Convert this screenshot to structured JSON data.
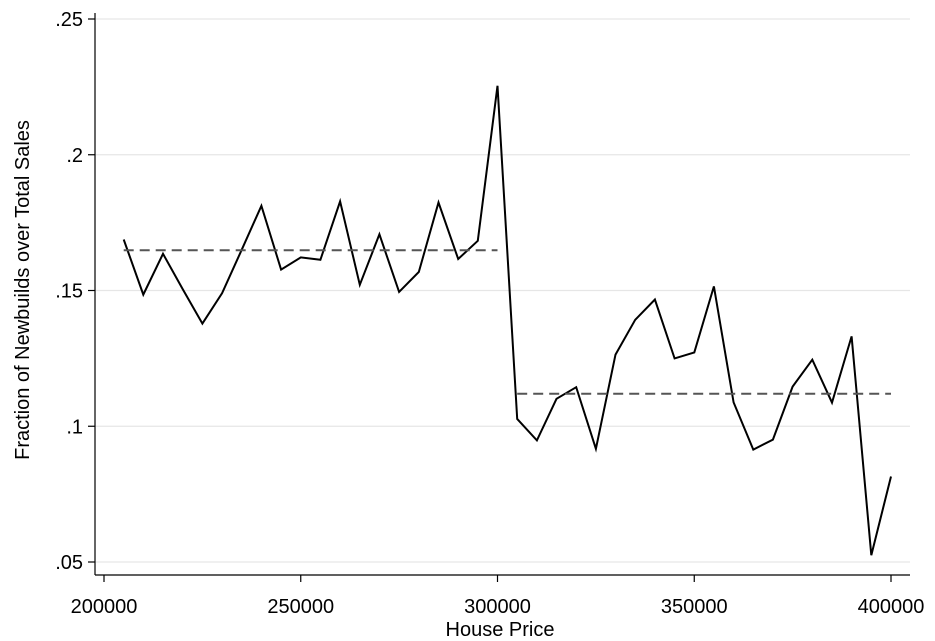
{
  "chart_data": {
    "type": "line",
    "title": "",
    "xlabel": "House Price",
    "ylabel": "Fraction of Newbuilds over Total Sales",
    "xlim": [
      200000,
      400000
    ],
    "ylim": [
      0.05,
      0.25
    ],
    "x_ticks": [
      {
        "value": 200000,
        "label": "200000"
      },
      {
        "value": 250000,
        "label": "250000"
      },
      {
        "value": 300000,
        "label": "300000"
      },
      {
        "value": 350000,
        "label": "350000"
      },
      {
        "value": 400000,
        "label": "400000"
      }
    ],
    "y_ticks": [
      {
        "value": 0.05,
        "label": ".05"
      },
      {
        "value": 0.1,
        "label": ".1"
      },
      {
        "value": 0.15,
        "label": ".15"
      },
      {
        "value": 0.2,
        "label": ".2"
      },
      {
        "value": 0.25,
        "label": ".25"
      }
    ],
    "grid": "horizontal",
    "legend": "none",
    "series": [
      {
        "style": "solid",
        "color": "#000000",
        "x": [
          205000,
          210000,
          215000,
          220000,
          225000,
          230000,
          235000,
          240000,
          245000,
          250000,
          255000,
          260000,
          265000,
          270000,
          275000,
          280000,
          285000,
          290000,
          295000,
          300000,
          305000,
          310000,
          315000,
          320000,
          325000,
          330000,
          335000,
          340000,
          345000,
          350000,
          355000,
          360000,
          365000,
          370000,
          375000,
          380000,
          385000,
          390000,
          395000,
          400000
        ],
        "y": [
          0.1688,
          0.1485,
          0.1635,
          0.1505,
          0.1378,
          0.149,
          0.165,
          0.1812,
          0.1577,
          0.1622,
          0.1613,
          0.1828,
          0.1521,
          0.1707,
          0.1495,
          0.1568,
          0.1824,
          0.1616,
          0.1683,
          0.2254,
          0.1027,
          0.0948,
          0.1101,
          0.1144,
          0.0917,
          0.1264,
          0.1392,
          0.1467,
          0.125,
          0.1272,
          0.1515,
          0.1088,
          0.0914,
          0.0951,
          0.1146,
          0.1245,
          0.1087,
          0.1331,
          0.0525,
          0.0815
        ]
      },
      {
        "style": "dashed",
        "color": "#555555",
        "x": [
          205000,
          300000
        ],
        "y": [
          0.1648,
          0.1648
        ]
      },
      {
        "style": "dashed",
        "color": "#555555",
        "x": [
          305000,
          400000
        ],
        "y": [
          0.112,
          0.112
        ]
      }
    ]
  }
}
